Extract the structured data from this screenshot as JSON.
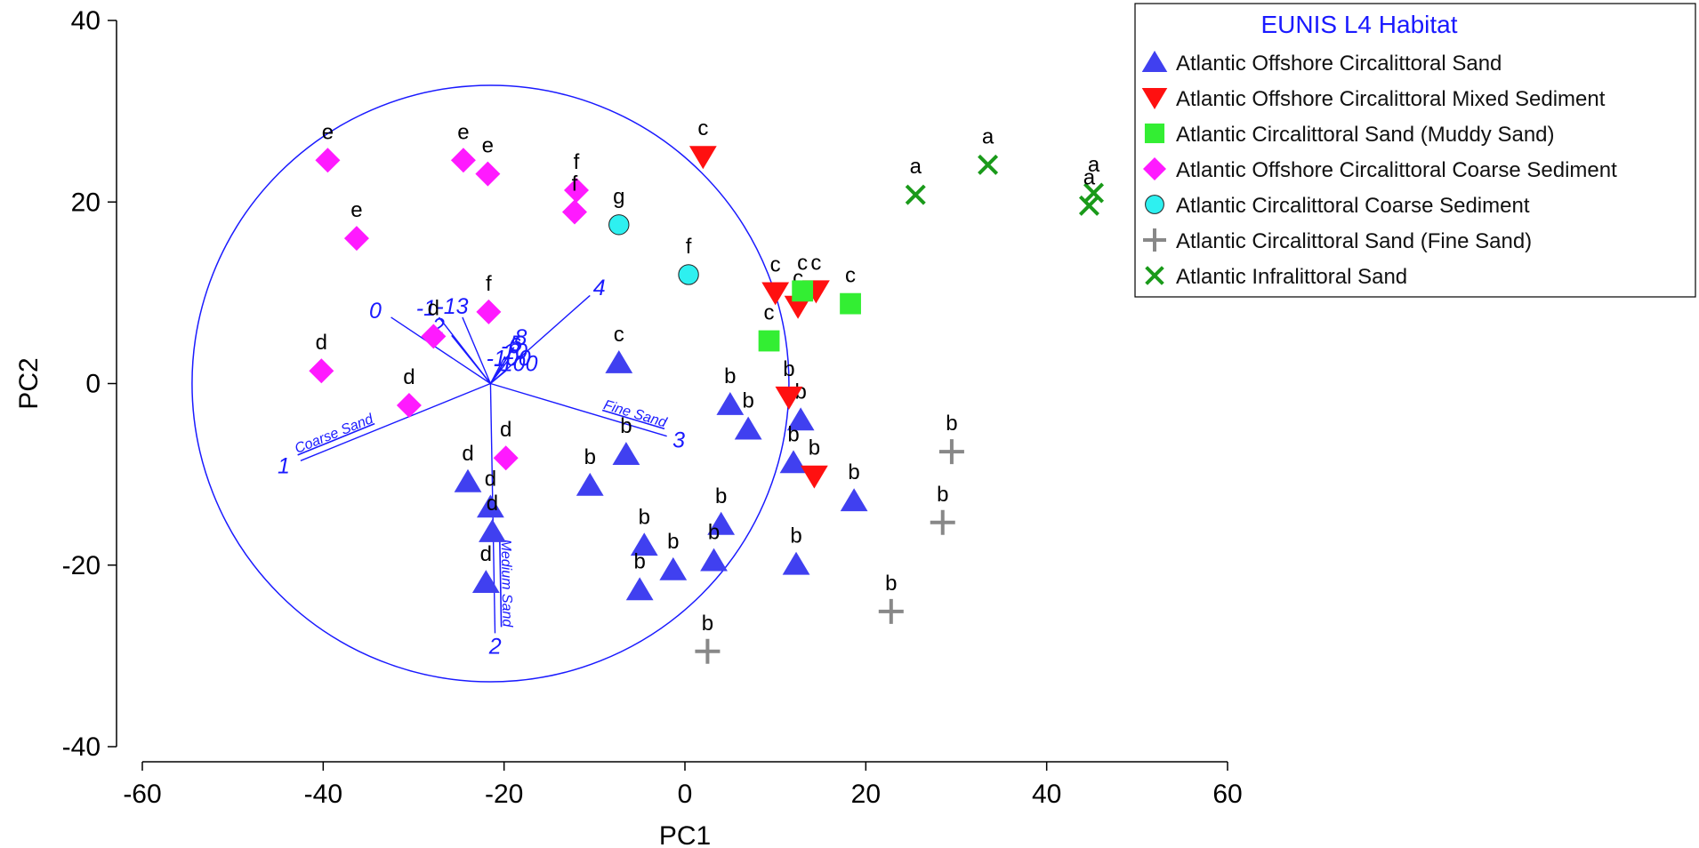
{
  "chart_data": {
    "type": "scatter",
    "xlabel": "PC1",
    "ylabel": "PC2",
    "xlim": [
      -60,
      60
    ],
    "ylim": [
      -40,
      40
    ],
    "xticks": [
      -60,
      -40,
      -20,
      0,
      20,
      40,
      60
    ],
    "yticks": [
      -40,
      -20,
      0,
      20,
      40
    ],
    "legend_title": "EUNIS L4 Habitat",
    "legend_position": "top-right",
    "series": [
      {
        "name": "Atlantic Offshore Circalittoral Sand",
        "marker": "triangle-up",
        "color": "#4040f0",
        "points": [
          {
            "x": -7.3,
            "y": 2.3,
            "label": "c"
          },
          {
            "x": 5.0,
            "y": -2.3,
            "label": "b"
          },
          {
            "x": 7.0,
            "y": -5.0,
            "label": "b"
          },
          {
            "x": -6.5,
            "y": -7.8,
            "label": "b"
          },
          {
            "x": -10.5,
            "y": -11.2,
            "label": "b"
          },
          {
            "x": 12.8,
            "y": -4.0,
            "label": "b"
          },
          {
            "x": 12.0,
            "y": -8.7,
            "label": "b"
          },
          {
            "x": 18.7,
            "y": -12.9,
            "label": "b"
          },
          {
            "x": 4.0,
            "y": -15.5,
            "label": "b"
          },
          {
            "x": -4.5,
            "y": -17.8,
            "label": "b"
          },
          {
            "x": 3.2,
            "y": -19.5,
            "label": "b"
          },
          {
            "x": -1.3,
            "y": -20.5,
            "label": "b"
          },
          {
            "x": -5.0,
            "y": -22.7,
            "label": "b"
          },
          {
            "x": 12.3,
            "y": -19.9,
            "label": "b"
          },
          {
            "x": -24.0,
            "y": -10.8,
            "label": "d"
          },
          {
            "x": -21.5,
            "y": -13.6,
            "label": "d"
          },
          {
            "x": -21.3,
            "y": -16.3,
            "label": "d"
          },
          {
            "x": -22.0,
            "y": -21.9,
            "label": "d"
          }
        ]
      },
      {
        "name": "Atlantic Offshore Circalittoral Mixed Sediment",
        "marker": "triangle-down",
        "color": "#ff1010",
        "points": [
          {
            "x": 2.0,
            "y": 25.0,
            "label": "c"
          },
          {
            "x": 10.0,
            "y": 10.0,
            "label": "c"
          },
          {
            "x": 14.5,
            "y": 10.2,
            "label": "c"
          },
          {
            "x": 12.5,
            "y": 8.5,
            "label": "c"
          },
          {
            "x": 11.5,
            "y": -1.5,
            "label": "b"
          },
          {
            "x": 14.3,
            "y": -10.2,
            "label": "b"
          }
        ]
      },
      {
        "name": "Atlantic Circalittoral Sand (Muddy Sand)",
        "marker": "square",
        "color": "#33ee33",
        "points": [
          {
            "x": 13.0,
            "y": 10.2,
            "label": "c"
          },
          {
            "x": 18.3,
            "y": 8.8,
            "label": "c"
          },
          {
            "x": 9.3,
            "y": 4.7,
            "label": "c"
          }
        ]
      },
      {
        "name": "Atlantic Offshore Circalittoral Coarse Sediment",
        "marker": "diamond",
        "color": "#ff1aff",
        "points": [
          {
            "x": -39.5,
            "y": 24.6,
            "label": "e"
          },
          {
            "x": -24.5,
            "y": 24.6,
            "label": "e"
          },
          {
            "x": -21.8,
            "y": 23.1,
            "label": "e"
          },
          {
            "x": -36.3,
            "y": 16.0,
            "label": "e"
          },
          {
            "x": -12.0,
            "y": 21.3,
            "label": "f"
          },
          {
            "x": -12.2,
            "y": 18.9,
            "label": "f"
          },
          {
            "x": -21.7,
            "y": 7.9,
            "label": "f"
          },
          {
            "x": -27.8,
            "y": 5.2,
            "label": "d"
          },
          {
            "x": -40.2,
            "y": 1.4,
            "label": "d"
          },
          {
            "x": -30.5,
            "y": -2.4,
            "label": "d"
          },
          {
            "x": -19.8,
            "y": -8.2,
            "label": "d"
          }
        ]
      },
      {
        "name": "Atlantic Circalittoral Coarse Sediment",
        "marker": "circle",
        "color": "#2ef0f0",
        "points": [
          {
            "x": -7.3,
            "y": 17.5,
            "label": "g"
          },
          {
            "x": 0.4,
            "y": 12.0,
            "label": "f"
          }
        ]
      },
      {
        "name": "Atlantic Circalittoral Sand (Fine Sand)",
        "marker": "plus",
        "color": "#888888",
        "points": [
          {
            "x": 29.5,
            "y": -7.5,
            "label": "b"
          },
          {
            "x": 28.5,
            "y": -15.3,
            "label": "b"
          },
          {
            "x": 22.8,
            "y": -25.1,
            "label": "b"
          },
          {
            "x": 2.5,
            "y": -29.5,
            "label": "b"
          }
        ]
      },
      {
        "name": "Atlantic Infralittoral Sand",
        "marker": "x",
        "color": "#1a9a1a",
        "points": [
          {
            "x": 25.5,
            "y": 20.8,
            "label": "a"
          },
          {
            "x": 33.5,
            "y": 24.1,
            "label": "a"
          },
          {
            "x": 45.2,
            "y": 21.0,
            "label": "a"
          },
          {
            "x": 44.7,
            "y": 19.6,
            "label": "a"
          }
        ]
      }
    ],
    "correlation_circle": {
      "center": [
        -21.5,
        0
      ],
      "radius": 33.0,
      "color": "#1a1aff"
    },
    "vectors": [
      {
        "label": "0",
        "end": [
          -32.5,
          7.3
        ]
      },
      {
        "label": "4",
        "end": [
          -10.5,
          9.7
        ]
      },
      {
        "label": "1",
        "end": [
          -42.5,
          -8.5
        ],
        "name": "Coarse Sand"
      },
      {
        "label": "3",
        "end": [
          -2.0,
          -5.8
        ],
        "name": "Fine Sand"
      },
      {
        "label": "2",
        "end": [
          -21.0,
          -27.5
        ],
        "name": "Medium Sand"
      },
      {
        "label": "-13",
        "end": [
          -24.6,
          7.3
        ]
      },
      {
        "label": "2",
        "end": [
          -25.8,
          5.3
        ]
      },
      {
        "label": "-1",
        "end": [
          -27.2,
          7.3
        ]
      },
      {
        "label": "8",
        "end": [
          -18.9,
          4.0
        ]
      },
      {
        "label": "5",
        "end": [
          -19.4,
          3.3
        ]
      },
      {
        "label": "-6",
        "end": [
          -19.9,
          3.0
        ]
      },
      {
        "label": "10",
        "end": [
          -19.6,
          2.5
        ]
      },
      {
        "label": "-100",
        "end": [
          -20.3,
          1.7
        ]
      },
      {
        "label": "-100",
        "end": [
          -19.8,
          1.4
        ]
      }
    ]
  }
}
